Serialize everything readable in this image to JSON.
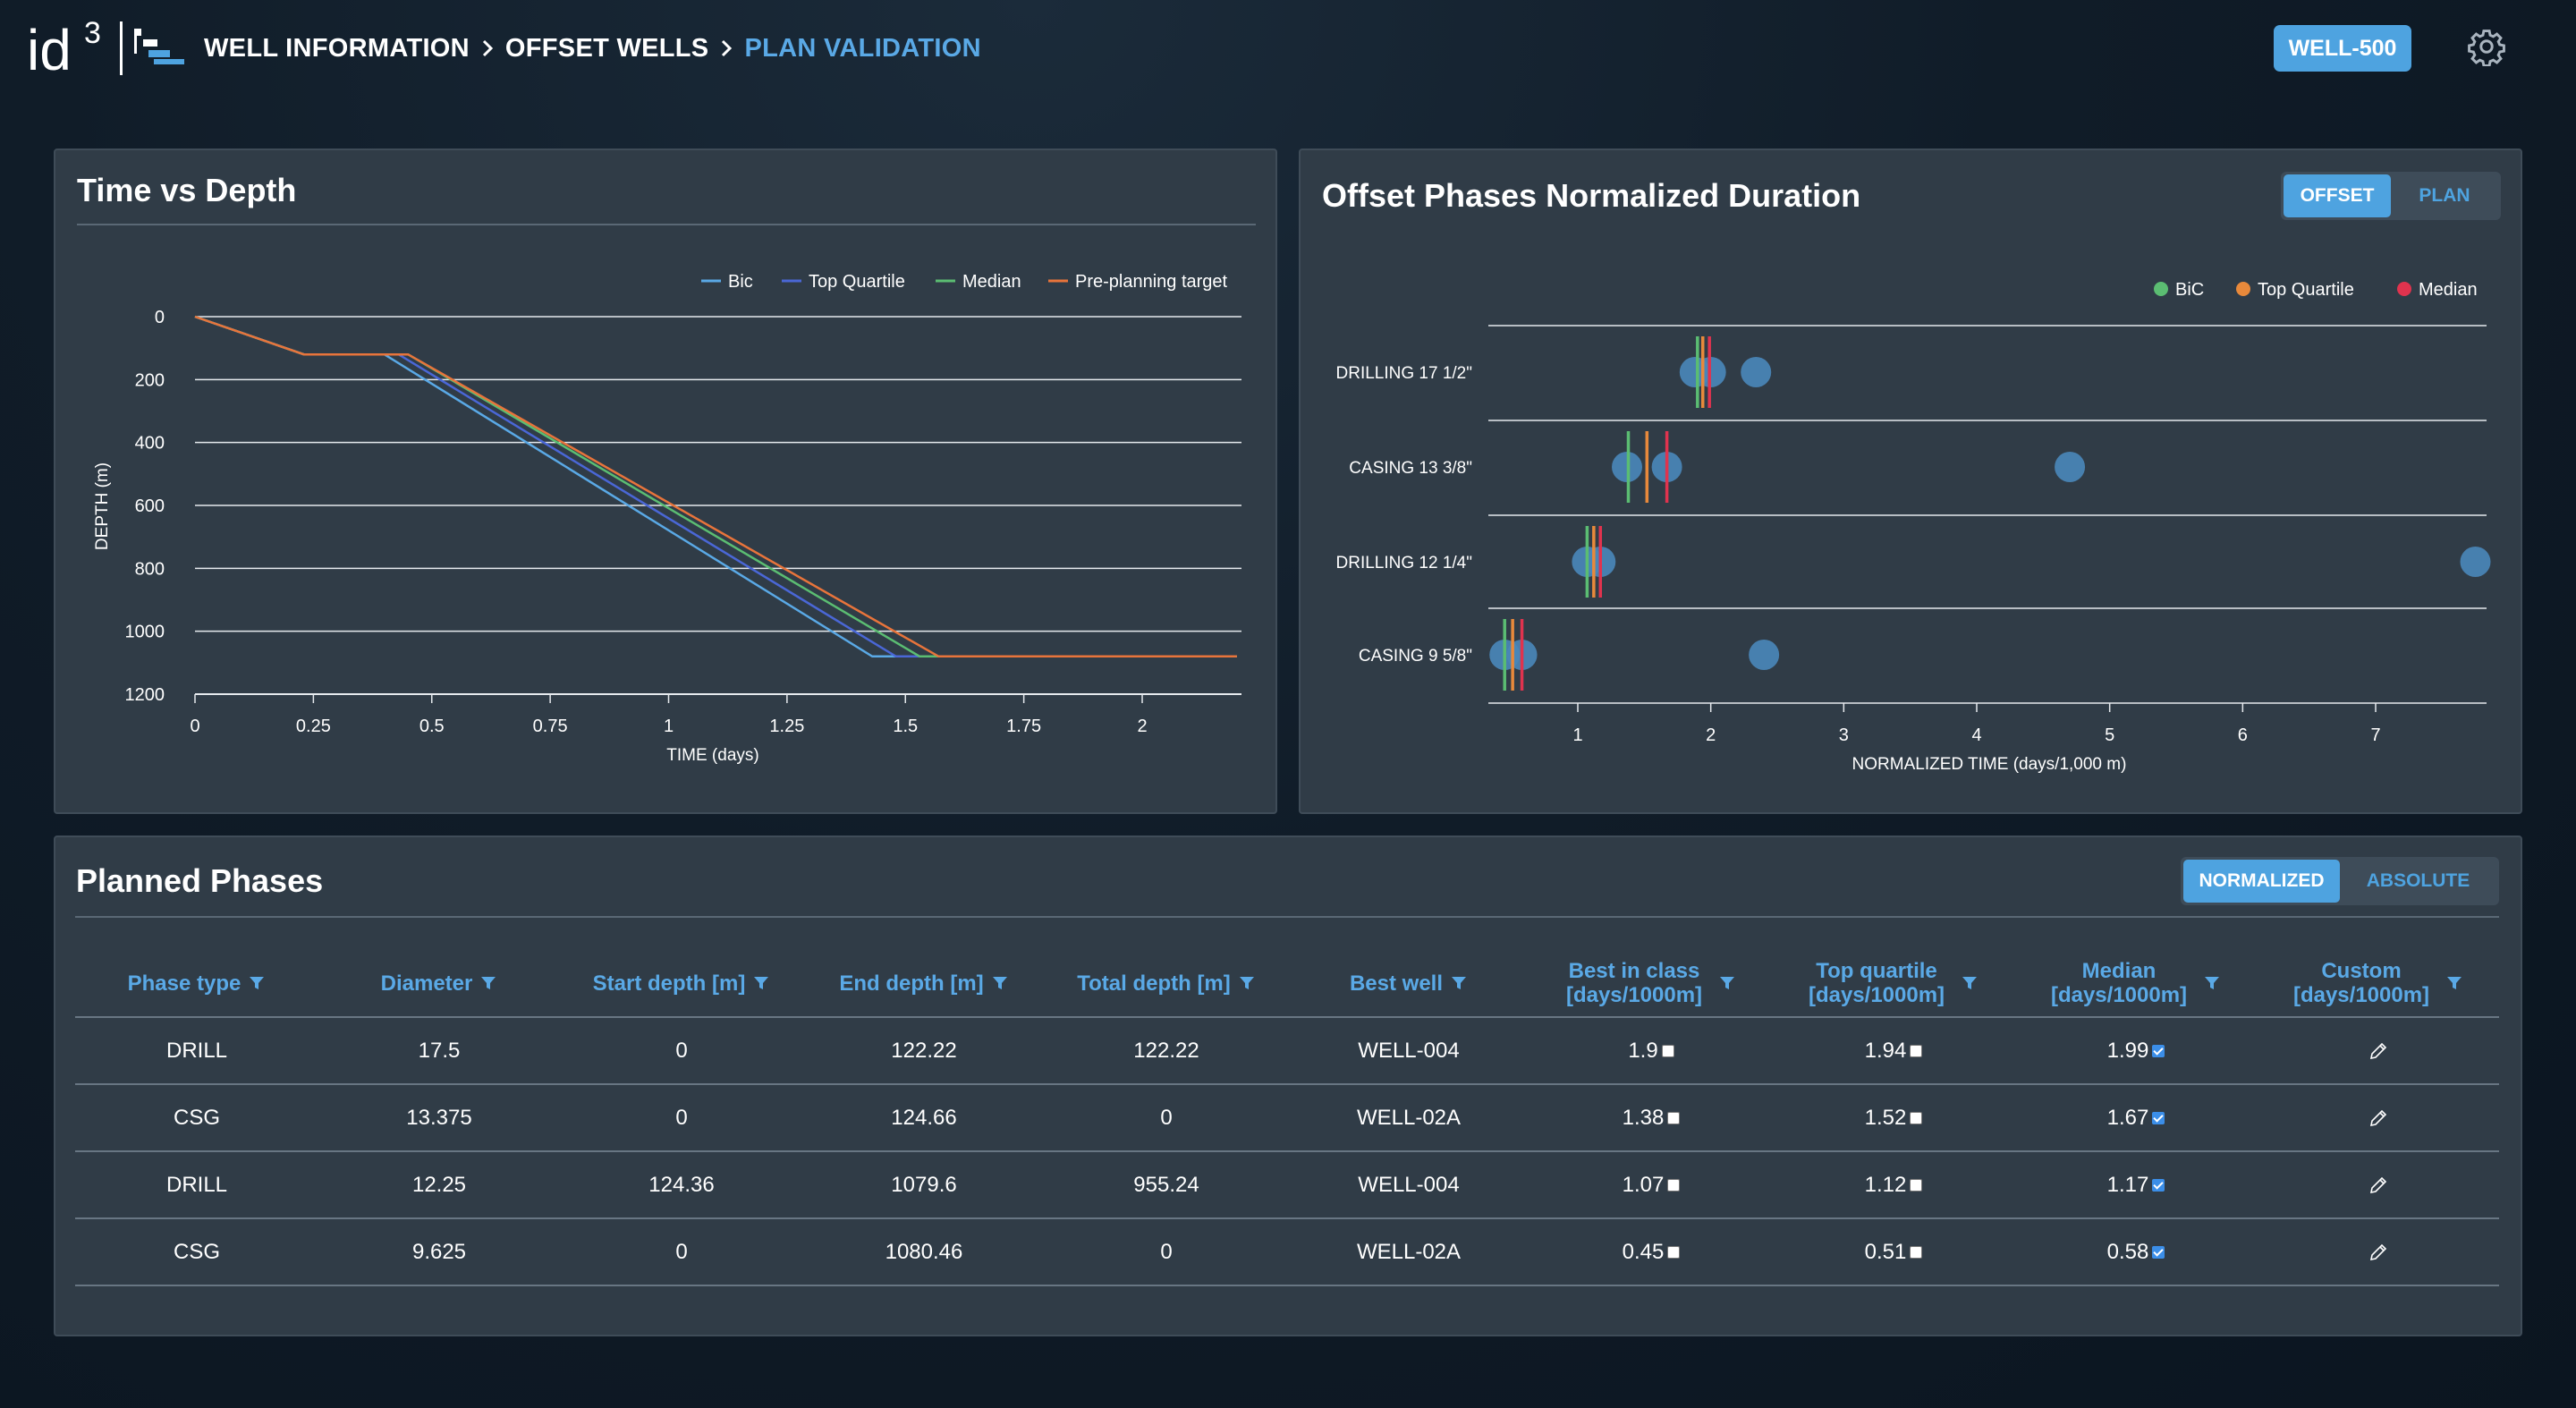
{
  "header": {
    "logo_text": "id",
    "logo_sup": "3",
    "breadcrumb": [
      "WELL INFORMATION",
      "OFFSET WELLS",
      "PLAN VALIDATION"
    ],
    "well_badge": "WELL-500"
  },
  "time_depth": {
    "title": "Time vs Depth",
    "chart_data": {
      "type": "line",
      "title": "Time vs Depth",
      "xlabel": "TIME (days)",
      "ylabel": "DEPTH (m)",
      "xlim": [
        0,
        2.2
      ],
      "ylim": [
        1200,
        0
      ],
      "x_ticks": [
        "0",
        "0.25",
        "0.5",
        "0.75",
        "1",
        "1.25",
        "1.5",
        "1.75",
        "2"
      ],
      "x_tick_values": [
        0,
        0.25,
        0.5,
        0.75,
        1,
        1.25,
        1.5,
        1.75,
        2
      ],
      "y_ticks": [
        "0",
        "200",
        "400",
        "600",
        "800",
        "1000",
        "1200"
      ],
      "y_tick_values": [
        0,
        200,
        400,
        600,
        800,
        1000,
        1200
      ],
      "grid": true,
      "legend_position": "top-right",
      "series": [
        {
          "name": "Bic",
          "color": "#5aa9e6",
          "points": [
            [
              0,
              0
            ],
            [
              0.23,
              120
            ],
            [
              0.4,
              120
            ],
            [
              1.43,
              1080
            ],
            [
              1.57,
              1080
            ],
            [
              2.2,
              1080
            ]
          ]
        },
        {
          "name": "Top Quartile",
          "color": "#4a67d6",
          "points": [
            [
              0,
              0
            ],
            [
              0.23,
              120
            ],
            [
              0.43,
              120
            ],
            [
              1.48,
              1080
            ],
            [
              1.57,
              1080
            ],
            [
              2.2,
              1080
            ]
          ]
        },
        {
          "name": "Median",
          "color": "#5bbd72",
          "points": [
            [
              0,
              0
            ],
            [
              0.23,
              120
            ],
            [
              0.45,
              120
            ],
            [
              1.53,
              1080
            ],
            [
              1.57,
              1080
            ],
            [
              2.2,
              1080
            ]
          ]
        },
        {
          "name": "Pre-planning target",
          "color": "#e8743b",
          "points": [
            [
              0,
              0
            ],
            [
              0.23,
              120
            ],
            [
              0.45,
              120
            ],
            [
              1.57,
              1080
            ],
            [
              2.2,
              1080
            ]
          ]
        }
      ]
    }
  },
  "offset_phases": {
    "title": "Offset Phases Normalized Duration",
    "toggle": {
      "options": [
        "OFFSET",
        "PLAN"
      ],
      "selected": "OFFSET"
    },
    "chart_data": {
      "type": "scatter",
      "title": "Offset Phases Normalized Duration",
      "xlabel": "NORMALIZED TIME (days/1,000 m)",
      "xlim": [
        0.4,
        7.85
      ],
      "x_ticks": [
        "1",
        "2",
        "3",
        "4",
        "5",
        "6",
        "7"
      ],
      "x_tick_values": [
        1,
        2,
        3,
        4,
        5,
        6,
        7
      ],
      "legend_position": "top-right",
      "categories": [
        "DRILLING 17 1/2\"",
        "CASING 13 3/8\"",
        "DRILLING 12 1/4\"",
        "CASING 9 5/8\""
      ],
      "points": [
        [
          1.88,
          2.0,
          2.34
        ],
        [
          1.37,
          1.67,
          4.7
        ],
        [
          1.07,
          1.17,
          7.75
        ],
        [
          0.45,
          0.58,
          2.4
        ]
      ],
      "point_color": "#4a87b8",
      "markers": [
        {
          "name": "BiC",
          "color": "#5bbd72",
          "values": [
            1.9,
            1.38,
            1.07,
            0.45
          ]
        },
        {
          "name": "Top Quartile",
          "color": "#e8893b",
          "values": [
            1.94,
            1.52,
            1.12,
            0.51
          ]
        },
        {
          "name": "Median",
          "color": "#e0334e",
          "values": [
            1.99,
            1.67,
            1.17,
            0.58
          ]
        }
      ]
    }
  },
  "planned_phases": {
    "title": "Planned Phases",
    "toggle": {
      "options": [
        "NORMALIZED",
        "ABSOLUTE"
      ],
      "selected": "NORMALIZED"
    },
    "columns": [
      {
        "label": "Phase type",
        "sub": ""
      },
      {
        "label": "Diameter",
        "sub": ""
      },
      {
        "label": "Start depth [m]",
        "sub": ""
      },
      {
        "label": "End depth [m]",
        "sub": ""
      },
      {
        "label": "Total depth [m]",
        "sub": ""
      },
      {
        "label": "Best well",
        "sub": ""
      },
      {
        "label": "Best in class",
        "sub": "[days/1000m]"
      },
      {
        "label": "Top quartile",
        "sub": "[days/1000m]"
      },
      {
        "label": "Median",
        "sub": "[days/1000m]"
      },
      {
        "label": "Custom",
        "sub": "[days/1000m]"
      }
    ],
    "rows": [
      {
        "phase": "DRILL",
        "diameter": "17.5",
        "start": "0",
        "end": "122.22",
        "total": "122.22",
        "best_well": "WELL-004",
        "bic": "1.9",
        "bic_checked": false,
        "tq": "1.94",
        "tq_checked": false,
        "median": "1.99",
        "median_checked": true
      },
      {
        "phase": "CSG",
        "diameter": "13.375",
        "start": "0",
        "end": "124.66",
        "total": "0",
        "best_well": "WELL-02A",
        "bic": "1.38",
        "bic_checked": false,
        "tq": "1.52",
        "tq_checked": false,
        "median": "1.67",
        "median_checked": true
      },
      {
        "phase": "DRILL",
        "diameter": "12.25",
        "start": "124.36",
        "end": "1079.6",
        "total": "955.24",
        "best_well": "WELL-004",
        "bic": "1.07",
        "bic_checked": false,
        "tq": "1.12",
        "tq_checked": false,
        "median": "1.17",
        "median_checked": true
      },
      {
        "phase": "CSG",
        "diameter": "9.625",
        "start": "0",
        "end": "1080.46",
        "total": "0",
        "best_well": "WELL-02A",
        "bic": "0.45",
        "bic_checked": false,
        "tq": "0.51",
        "tq_checked": false,
        "median": "0.58",
        "median_checked": true
      }
    ]
  }
}
